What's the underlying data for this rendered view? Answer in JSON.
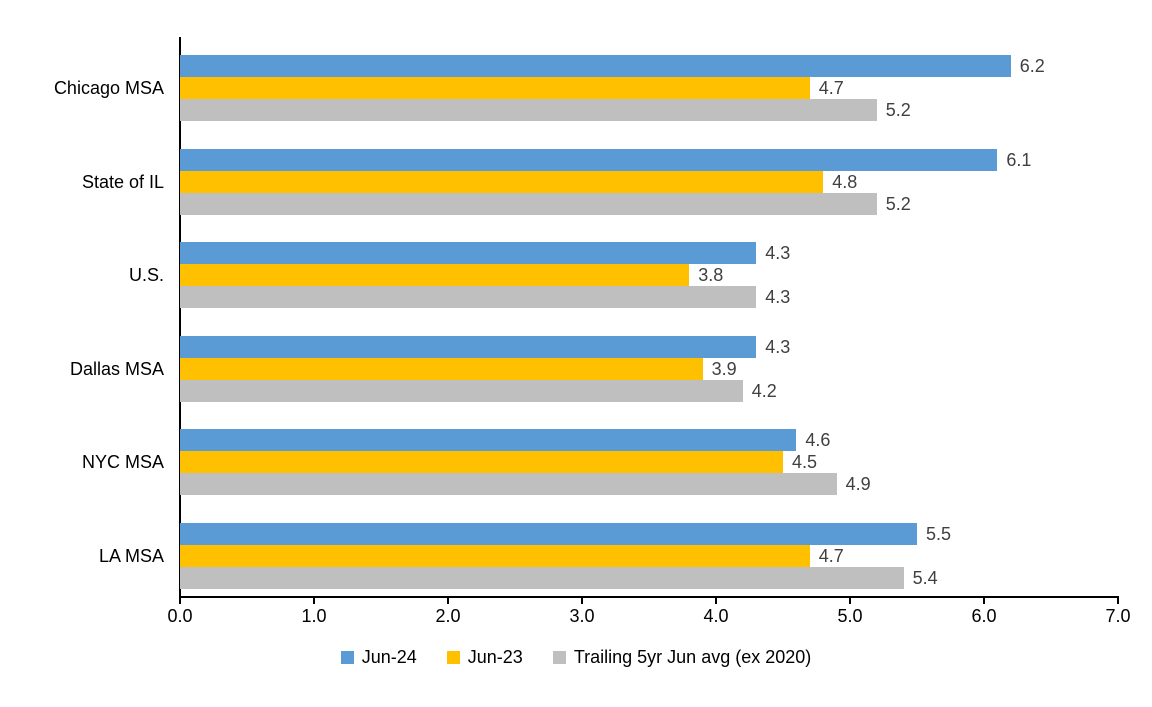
{
  "chart_data": {
    "type": "bar",
    "orientation": "horizontal",
    "title": "",
    "xlabel": "",
    "ylabel": "",
    "categories": [
      "Chicago MSA",
      "State of IL",
      "U.S.",
      "Dallas MSA",
      "NYC MSA",
      "LA MSA"
    ],
    "series": [
      {
        "name": "Jun-24",
        "color": "#5B9BD5",
        "values": [
          6.2,
          6.1,
          4.3,
          4.3,
          4.6,
          5.5
        ]
      },
      {
        "name": "Jun-23",
        "color": "#FFC000",
        "values": [
          4.7,
          4.8,
          3.8,
          3.9,
          4.5,
          4.7
        ]
      },
      {
        "name": "Trailing 5yr Jun avg (ex 2020)",
        "color": "#BFBFBF",
        "values": [
          5.2,
          5.2,
          4.3,
          4.2,
          4.9,
          5.4
        ]
      }
    ],
    "xlim": [
      0,
      7
    ],
    "xticks": [
      "0.0",
      "1.0",
      "2.0",
      "3.0",
      "4.0",
      "5.0",
      "6.0",
      "7.0"
    ],
    "data_labels": true,
    "legend_position": "bottom",
    "grid": false
  },
  "colors": {
    "axis": "#000000",
    "data_label_text": "#404040",
    "category_text": "#000000",
    "background": "#FFFFFF"
  }
}
